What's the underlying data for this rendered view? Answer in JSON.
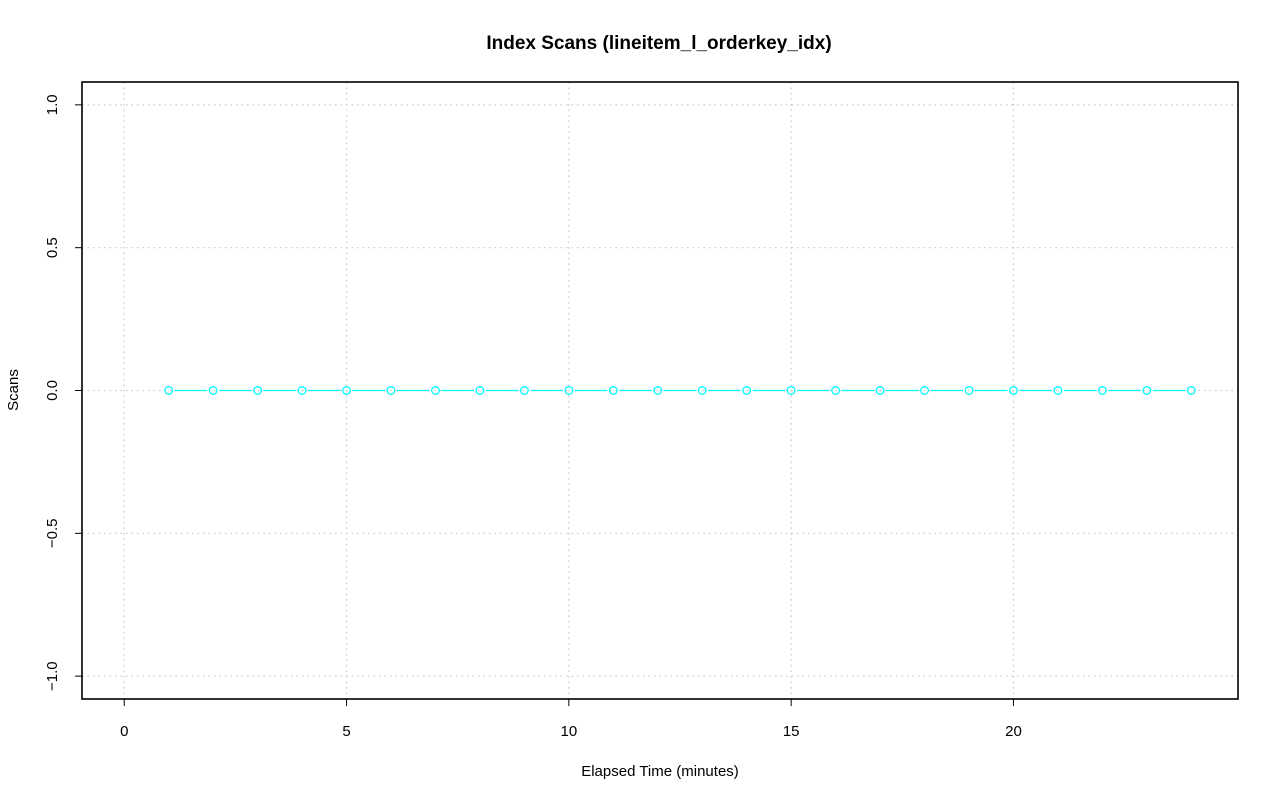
{
  "chart_data": {
    "type": "line",
    "title": "Index Scans (lineitem_l_orderkey_idx)",
    "xlabel": "Elapsed Time (minutes)",
    "ylabel": "Scans",
    "xlim": [
      -0.95,
      25.05
    ],
    "ylim": [
      -1.08,
      1.08
    ],
    "x_ticks": [
      0,
      5,
      10,
      15,
      20
    ],
    "y_ticks": [
      -1.0,
      -0.5,
      0.0,
      0.5,
      1.0
    ],
    "x_tick_labels": [
      "0",
      "5",
      "10",
      "15",
      "20"
    ],
    "y_tick_labels": [
      "−1.0",
      "−0.5",
      "0.0",
      "0.5",
      "1.0"
    ],
    "grid": true,
    "series": [
      {
        "color": "#00ffff",
        "marker": "circle",
        "x": [
          1,
          2,
          3,
          4,
          5,
          6,
          7,
          8,
          9,
          10,
          11,
          12,
          13,
          14,
          15,
          16,
          17,
          18,
          19,
          20,
          21,
          22,
          23,
          24
        ],
        "y": [
          0,
          0,
          0,
          0,
          0,
          0,
          0,
          0,
          0,
          0,
          0,
          0,
          0,
          0,
          0,
          0,
          0,
          0,
          0,
          0,
          0,
          0,
          0,
          0
        ]
      }
    ]
  }
}
